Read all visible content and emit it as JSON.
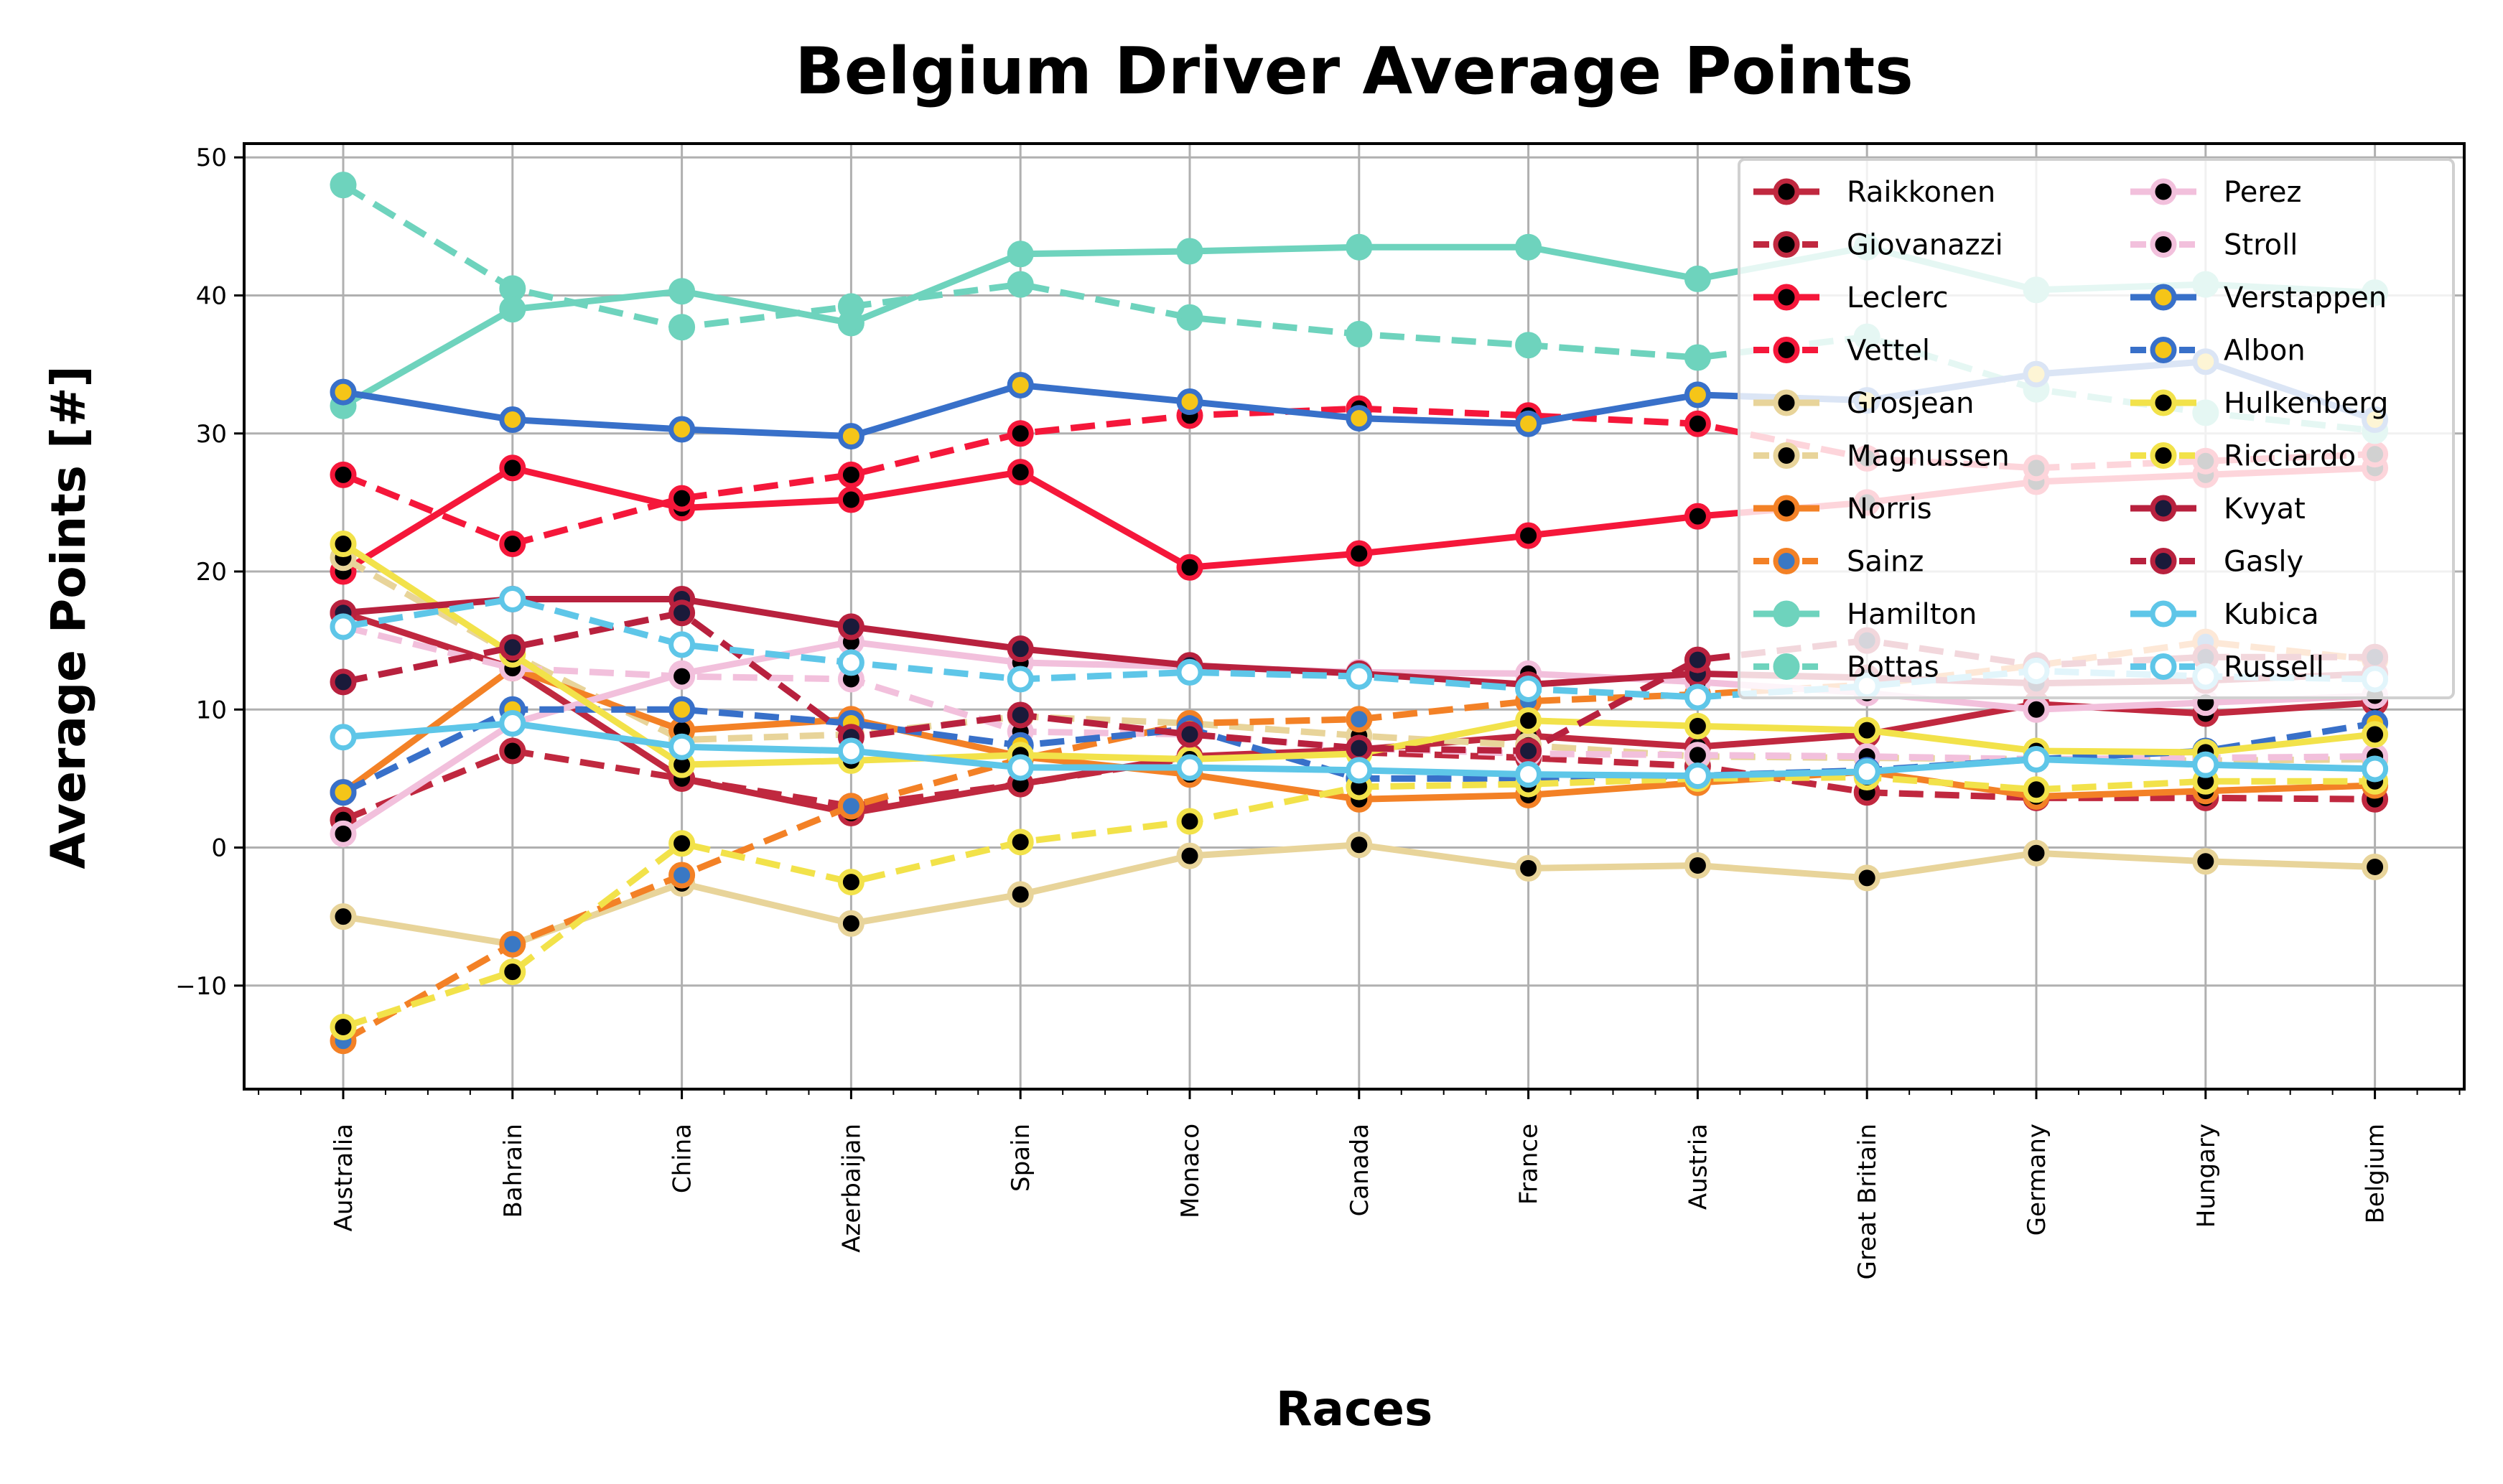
{
  "chart_data": {
    "type": "line",
    "title": "Belgium Driver Average Points",
    "xlabel": "Races",
    "ylabel": "Average Points [#]",
    "ylim": [
      -17.5,
      51
    ],
    "yticks": [
      -10,
      0,
      10,
      20,
      30,
      40,
      50
    ],
    "ytick_labels": [
      "−10",
      "0",
      "10",
      "20",
      "30",
      "40",
      "50"
    ],
    "grid": true,
    "legend_position": "top-right",
    "categories": [
      "Australia",
      "Bahrain",
      "China",
      "Azerbaijan",
      "Spain",
      "Monaco",
      "Canada",
      "France",
      "Austria",
      "Great Britain",
      "Germany",
      "Hungary",
      "Belgium"
    ],
    "series": [
      {
        "name": "Raikkonen",
        "style": "solid",
        "color": "#c0283f",
        "marker": "#000000",
        "values": [
          17,
          13,
          5,
          2.5,
          4.6,
          6.6,
          7.1,
          8.1,
          7.3,
          8.2,
          10.4,
          9.7,
          10.5
        ]
      },
      {
        "name": "Giovanazzi",
        "style": "dashed",
        "color": "#c0283f",
        "marker": "#000000",
        "values": [
          2,
          7,
          5,
          3,
          4.6,
          6.5,
          6.9,
          6.5,
          5.9,
          4,
          3.6,
          3.6,
          3.5
        ]
      },
      {
        "name": "Leclerc",
        "style": "solid",
        "color": "#f5173a",
        "marker": "#000000",
        "values": [
          20,
          27.5,
          24.6,
          25.2,
          27.2,
          20.3,
          21.3,
          22.6,
          24,
          25,
          26.5,
          27,
          27.5
        ]
      },
      {
        "name": "Vettel",
        "style": "dashed",
        "color": "#f5173a",
        "marker": "#000000",
        "values": [
          27,
          22,
          25.3,
          27,
          30,
          31.3,
          31.8,
          31.3,
          30.7,
          28.2,
          27.5,
          28,
          28.5
        ]
      },
      {
        "name": "Grosjean",
        "style": "solid",
        "color": "#e8d49a",
        "marker": "#000000",
        "values": [
          -5,
          -7,
          -2.6,
          -5.5,
          -3.4,
          -0.6,
          0.2,
          -1.5,
          -1.3,
          -2.2,
          -0.4,
          -1,
          -1.4
        ]
      },
      {
        "name": "Magnussen",
        "style": "dashed",
        "color": "#e8d49a",
        "marker": "#000000",
        "values": [
          21,
          14,
          7.8,
          8.2,
          9.5,
          9,
          8.1,
          7.4,
          6.6,
          6.5,
          6.4,
          6.3,
          6.4
        ]
      },
      {
        "name": "Norris",
        "style": "solid",
        "color": "#f38126",
        "marker": "#000000",
        "values": [
          4,
          13,
          8.5,
          9.3,
          6.6,
          5.3,
          3.5,
          3.8,
          4.7,
          5.5,
          3.7,
          4.1,
          4.5
        ]
      },
      {
        "name": "Sainz",
        "style": "dashed",
        "color": "#f38126",
        "marker": "#3a78c4",
        "values": [
          -14,
          -7,
          -2,
          3,
          6.4,
          9,
          9.3,
          10.6,
          11.1,
          11.8,
          13.2,
          14.9,
          13.6
        ]
      },
      {
        "name": "Hamilton",
        "style": "solid",
        "color": "#6ed3bd",
        "marker": "#6ed3bd",
        "values": [
          32,
          39,
          40.3,
          38,
          43,
          43.2,
          43.5,
          43.5,
          41.2,
          43.5,
          40.4,
          40.8,
          40.2
        ]
      },
      {
        "name": "Bottas",
        "style": "dashed",
        "color": "#6ed3bd",
        "marker": "#6ed3bd",
        "values": [
          48,
          40.5,
          37.7,
          39.2,
          40.8,
          38.4,
          37.2,
          36.4,
          35.5,
          37,
          33.2,
          31.5,
          30.2
        ]
      },
      {
        "name": "Perez",
        "style": "solid",
        "color": "#f2c0dc",
        "marker": "#000000",
        "values": [
          1,
          9,
          12.6,
          14.9,
          13.4,
          13.1,
          12.7,
          12.6,
          12,
          11.2,
          10,
          10.5,
          11
        ]
      },
      {
        "name": "Stroll",
        "style": "dashed",
        "color": "#f2c0dc",
        "marker": "#000000",
        "values": [
          16,
          13,
          12.4,
          12.2,
          8.4,
          8.2,
          7.2,
          6.8,
          6.7,
          6.6,
          6.4,
          6.5,
          6.6
        ]
      },
      {
        "name": "Verstappen",
        "style": "solid",
        "color": "#3870c9",
        "marker": "#f5c518",
        "values": [
          33,
          31,
          30.3,
          29.8,
          33.5,
          32.3,
          31.1,
          30.7,
          32.8,
          32.4,
          34.3,
          35.2,
          31
        ]
      },
      {
        "name": "Albon",
        "style": "dashed",
        "color": "#3870c9",
        "marker": "#f5c518",
        "values": [
          4,
          10,
          10,
          9,
          7.4,
          8.6,
          5,
          5,
          5.2,
          5.6,
          6.4,
          7,
          9
        ]
      },
      {
        "name": "Hulkenberg",
        "style": "solid",
        "color": "#f2e24a",
        "marker": "#000000",
        "values": [
          22,
          14,
          6,
          6.3,
          6.7,
          6.4,
          6.8,
          9.2,
          8.8,
          8.5,
          7,
          6.9,
          8.2
        ]
      },
      {
        "name": "Ricciardo",
        "style": "dashed",
        "color": "#f2e24a",
        "marker": "#000000",
        "values": [
          -13,
          -9,
          0.3,
          -2.5,
          0.4,
          1.9,
          4.4,
          4.6,
          5,
          5.1,
          4.2,
          4.8,
          4.8
        ]
      },
      {
        "name": "Kvyat",
        "style": "solid",
        "color": "#b8213e",
        "marker": "#1a1a3a",
        "values": [
          17,
          18,
          18,
          16,
          14.4,
          13.2,
          12.6,
          11.8,
          12.6,
          12.3,
          11.9,
          12.1,
          12.6
        ]
      },
      {
        "name": "Gasly",
        "style": "dashed",
        "color": "#b8213e",
        "marker": "#1a1a3a",
        "values": [
          12,
          14.5,
          17,
          8,
          9.6,
          8.2,
          7.2,
          7,
          13.6,
          15,
          13.2,
          13.8,
          13.8
        ]
      },
      {
        "name": "Kubica",
        "style": "solid",
        "color": "#5ec6e8",
        "marker": "#ffffff",
        "values": [
          8,
          9,
          7.3,
          7,
          5.8,
          5.8,
          5.6,
          5.3,
          5.2,
          5.5,
          6.4,
          6,
          5.7
        ]
      },
      {
        "name": "Russell",
        "style": "dashed",
        "color": "#5ec6e8",
        "marker": "#ffffff",
        "values": [
          16,
          18,
          14.7,
          13.4,
          12.2,
          12.7,
          12.4,
          11.5,
          10.9,
          11.7,
          12.8,
          12.4,
          12.2
        ]
      }
    ]
  }
}
